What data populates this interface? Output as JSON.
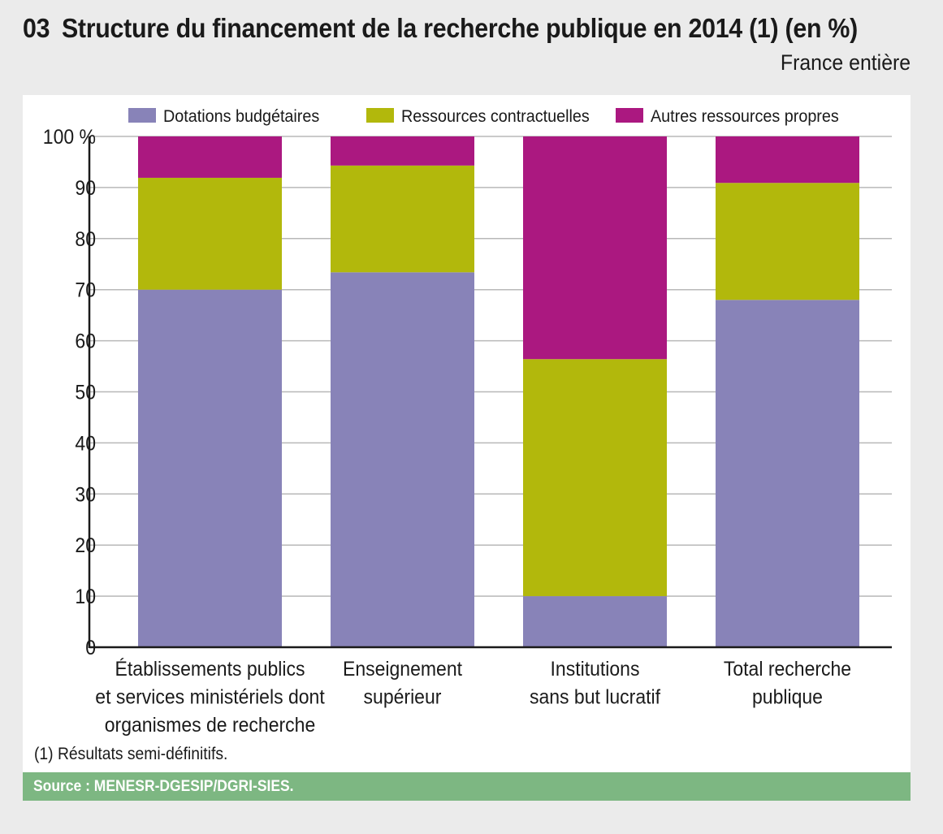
{
  "header": {
    "number": "03",
    "title": "Structure du financement de la recherche publique en 2014 (1) (en %)",
    "subtitle": "France entière"
  },
  "footer": {
    "note": "(1) Résultats semi-définitifs.",
    "source": "Source : MENESR-DGESIP/DGRI-SIES."
  },
  "colors": {
    "background": "#ebebeb",
    "panel": "#ffffff",
    "source_bar": "#7db782",
    "grid": "#b8b8b8",
    "axis": "#1a1a1a"
  },
  "chart_data": {
    "type": "bar",
    "stacked": true,
    "title": "Structure du financement de la recherche publique en 2014 (1) (en %)",
    "xlabel": "",
    "ylabel": "",
    "ylim": [
      0,
      100
    ],
    "yticks": [
      0,
      10,
      20,
      30,
      40,
      50,
      60,
      70,
      80,
      90,
      100
    ],
    "ytick_labels": [
      "0",
      "10",
      "20",
      "30",
      "40",
      "50",
      "60",
      "70",
      "80",
      "90",
      "100 %"
    ],
    "grid": true,
    "legend_position": "top",
    "categories": [
      [
        "Établissements publics",
        "et services ministériels dont",
        "organismes de recherche"
      ],
      [
        "Enseignement",
        "supérieur"
      ],
      [
        "Institutions",
        "sans but lucratif"
      ],
      [
        "Total recherche",
        "publique"
      ]
    ],
    "series": [
      {
        "name": "Dotations budgétaires",
        "color": "#8883b8",
        "values": [
          70.0,
          73.4,
          10.0,
          68.0
        ]
      },
      {
        "name": "Ressources contractuelles",
        "color": "#b2b80c",
        "values": [
          21.9,
          20.9,
          46.4,
          22.9
        ]
      },
      {
        "name": "Autres ressources propres",
        "color": "#ab1880",
        "values": [
          8.1,
          5.7,
          43.6,
          9.1
        ]
      }
    ]
  }
}
